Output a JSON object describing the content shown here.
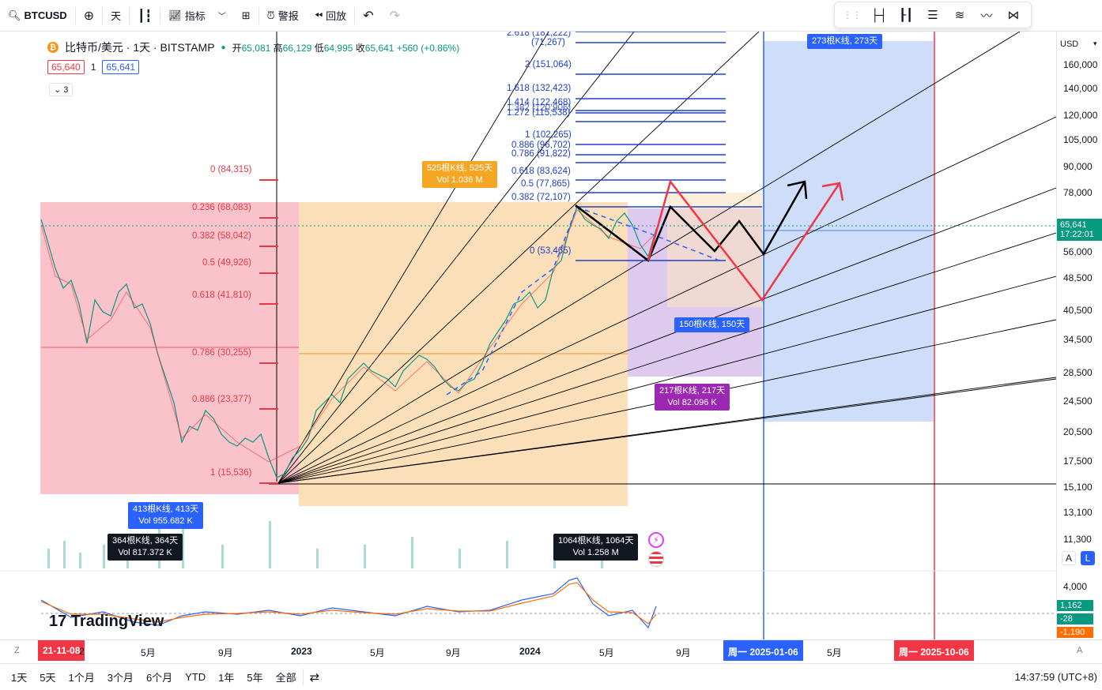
{
  "toolbar": {
    "symbol": "BTCUSD",
    "interval": "天",
    "indicators": "指标",
    "alert": "警报",
    "replay": "回放"
  },
  "legend": {
    "title": "比特币/美元 · 1天 · BITSTAMP",
    "open_label": "开",
    "open": "65,081",
    "high_label": "高",
    "high": "66,129",
    "low_label": "低",
    "low": "64,995",
    "close_label": "收",
    "close": "65,641",
    "change": "+560 (+0.86%)",
    "bid": "65,640",
    "spread": "1",
    "ask": "65,641",
    "collapsed_count": "3"
  },
  "yaxis": {
    "currency": "USD",
    "ticks": [
      "160,000",
      "140,000",
      "120,000",
      "105,000",
      "90,000",
      "78,000",
      "56,000",
      "48,500",
      "40,500",
      "34,500",
      "28,500",
      "24,500",
      "20,500",
      "17,500",
      "15,100",
      "13,100",
      "11,300",
      "4,000"
    ],
    "last_price": "65,641",
    "countdown": "17:22:01",
    "ind_values": [
      "1,162",
      "-28",
      "-1,190"
    ],
    "btn_a": "A",
    "btn_l": "L"
  },
  "xaxis": {
    "start_date": "21-11-08",
    "ticks": [
      "2",
      "5月",
      "9月",
      "2023",
      "5月",
      "9月",
      "2024",
      "5月",
      "9月",
      "5月"
    ],
    "highlight1": "周一 2025-01-06",
    "highlight2": "周一 2025-10-06",
    "z_btn": "Z",
    "a_btn": "A"
  },
  "fib_left": [
    {
      "label": "0 (84,315)"
    },
    {
      "label": "0.236 (68,083)"
    },
    {
      "label": "0.382 (58,042)"
    },
    {
      "label": "0.5 (49,926)"
    },
    {
      "label": "0.618 (41,810)"
    },
    {
      "label": "0.786 (30,255)"
    },
    {
      "label": "0.886 (23,377)"
    },
    {
      "label": "1 (15,536)"
    }
  ],
  "fib_ext": [
    {
      "label": "2.618 (181,222)"
    },
    {
      "label": "(71,267)"
    },
    {
      "label": "2 (151,064)"
    },
    {
      "label": "1.618 (132,423)"
    },
    {
      "label": "1.414 (122,468)"
    },
    {
      "label": "1.382 (120,906)"
    },
    {
      "label": "1.272 (115,538)"
    },
    {
      "label": "1 (102,265)"
    },
    {
      "label": "0.886 (96,702)"
    },
    {
      "label": "0.786 (91,822)"
    },
    {
      "label": "0.618 (83,624)"
    },
    {
      "label": "0.5 (77,865)"
    },
    {
      "label": "0.382 (72,107)"
    },
    {
      "label": "0 (53,465)"
    }
  ],
  "ranges": {
    "orange_top_1": "525根K线, 525天",
    "orange_top_2": "Vol 1.036 M",
    "red_1": "413根K线, 413天",
    "red_2": "Vol 955.682 K",
    "black1_1": "364根K线, 364天",
    "black1_2": "Vol 817.372 K",
    "black2_1": "1064根K线, 1064天",
    "black2_2": "Vol 1.258 M",
    "purple_1": "217根K线, 217天",
    "purple_2": "Vol 82.096 K",
    "blue_mid": "150根K线, 150天",
    "blue_top": "273根K线, 273天"
  },
  "watermark": "TradingView",
  "bottom": {
    "ranges": [
      "1天",
      "5天",
      "1个月",
      "3个月",
      "6个月",
      "YTD",
      "1年",
      "5年",
      "全部"
    ],
    "clock": "14:37:59 (UTC+8)"
  }
}
